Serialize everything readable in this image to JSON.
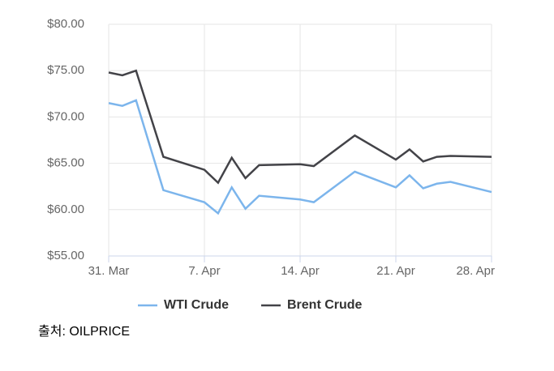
{
  "chart_data": {
    "type": "line",
    "x": [
      "31. Mar",
      "1. Apr",
      "2. Apr",
      "4. Apr",
      "7. Apr",
      "8. Apr",
      "9. Apr",
      "10. Apr",
      "11. Apr",
      "14. Apr",
      "15. Apr",
      "18. Apr",
      "21. Apr",
      "22. Apr",
      "23. Apr",
      "24. Apr",
      "25. Apr",
      "28. Apr"
    ],
    "series": [
      {
        "name": "WTI Crude",
        "color": "#7cb5ec",
        "values": [
          71.5,
          71.2,
          71.8,
          62.1,
          60.8,
          59.6,
          62.4,
          60.1,
          61.5,
          61.1,
          60.8,
          64.1,
          62.4,
          63.7,
          62.3,
          62.8,
          63.0,
          61.9
        ]
      },
      {
        "name": "Brent Crude",
        "color": "#434348",
        "values": [
          74.8,
          74.5,
          75.0,
          65.7,
          64.3,
          62.9,
          65.6,
          63.4,
          64.8,
          64.9,
          64.7,
          68.0,
          65.4,
          66.5,
          65.2,
          65.7,
          65.8,
          65.7
        ]
      }
    ],
    "xticks": [
      "31. Mar",
      "7. Apr",
      "14. Apr",
      "21. Apr",
      "28. Apr"
    ],
    "ylim": [
      55,
      80
    ],
    "yticks": [
      {
        "value": 55,
        "label": "$55.00"
      },
      {
        "value": 60,
        "label": "$60.00"
      },
      {
        "value": 65,
        "label": "$65.00"
      },
      {
        "value": 70,
        "label": "$70.00"
      },
      {
        "value": 75,
        "label": "$75.00"
      },
      {
        "value": 80,
        "label": "$80.00"
      }
    ],
    "grid": true,
    "legend": "bottom",
    "source": "출처: OILPRICE"
  }
}
